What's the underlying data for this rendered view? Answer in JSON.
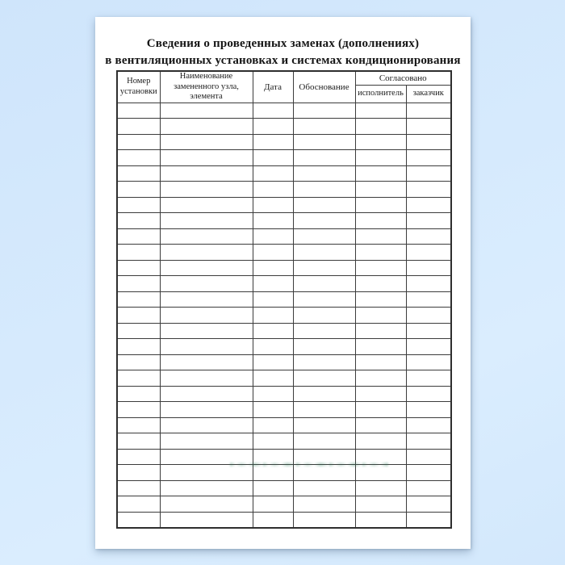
{
  "document": {
    "title_line1": "Сведения о проведенных заменах (дополнениях)",
    "title_line2": "в вентиляционных установках и системах кондиционирования"
  },
  "table": {
    "headers": {
      "installation_number": "Номер\nустановки",
      "replaced_unit_name": "Наименование\nзамененного узла,\nэлемента",
      "date": "Дата",
      "justification": "Обоснование",
      "agreed_group": "Согласовано",
      "agreed_executor": "исполнитель",
      "agreed_customer": "заказчик"
    },
    "column_count": 6,
    "empty_row_count": 27,
    "cells_empty": true
  },
  "colors": {
    "page_background": "#d4e9fc",
    "paper": "#ffffff",
    "table_border": "#3c3c3c",
    "text": "#1b1b1b",
    "watermark_tint": "#2e7d5b"
  }
}
